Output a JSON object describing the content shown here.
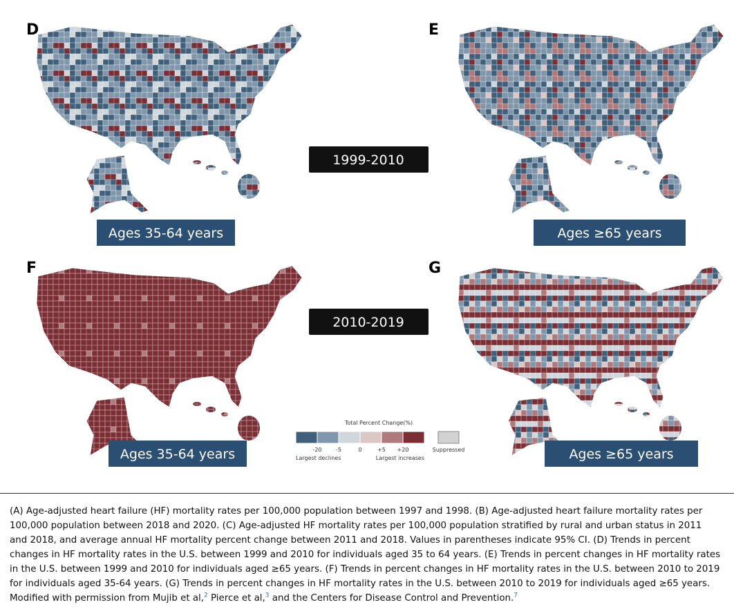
{
  "panels": [
    {
      "letter": "D",
      "age_label": "Ages 35-64 years"
    },
    {
      "letter": "E",
      "age_label": "Ages ≥65 years"
    },
    {
      "letter": "F",
      "age_label": "Ages 35-64 years"
    },
    {
      "letter": "G",
      "age_label": "Ages ≥65 years"
    }
  ],
  "periods": [
    "1999-2010",
    "2010-2019"
  ],
  "legend": {
    "title": "Total Percent Change(%)",
    "ticks": [
      "-20",
      "-5",
      "0",
      "+5",
      "+20"
    ],
    "colors": [
      "#3f5f7a",
      "#8097ab",
      "#cfd6dc",
      "#dcc6c6",
      "#b07a7c",
      "#7b2f35"
    ],
    "suppressed_color": "#d2d2d2",
    "suppressed": "Suppressed",
    "low_note": "Largest declines",
    "high_note": "Largest increases"
  },
  "caption": {
    "text_1": "(A) Age-adjusted heart failure (HF) mortality rates per 100,000 population between 1997 and 1998. (B) Age-adjusted heart failure mortality rates per 100,000 population between 2018 and 2020. (C) Age-adjusted HF mortality rates per 100,000 population stratified by rural and urban status in 2011 and 2018, and average annual HF mortality percent change between 2011 and 2018. Values in parentheses indicate 95% CI. (D) Trends in percent changes in HF mortality rates in the U.S. between 1999 and 2010 for individuals aged 35 to 64 years. (E) Trends in percent changes in HF mortality rates in the U.S. between 1999 and 2010 for individuals aged ≥65 years. (F) Trends in percent changes in HF mortality rates in the U.S. between 2010 to 2019 for individuals aged 35-64 years. (G) Trends in percent changes in HF mortality rates in the U.S. between 2010 to 2019 for individuals aged ≥65 years. Modified with permission from Mujib et al,",
    "ref_1": "2",
    "text_2": " Pierce et al,",
    "ref_2": "3",
    "text_3": " and the Centers for Disease Control and Prevention.",
    "ref_3": "7"
  }
}
